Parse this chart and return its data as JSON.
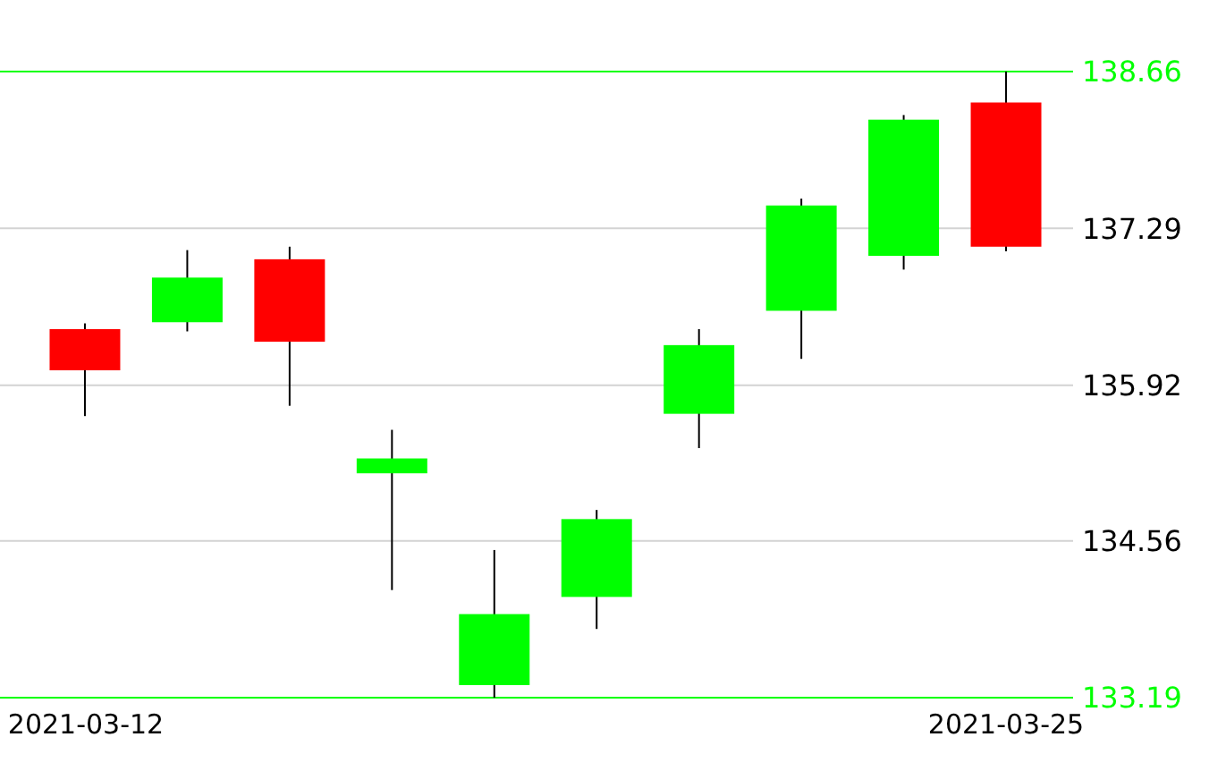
{
  "chart_data": {
    "type": "candlestick",
    "categories": [
      "2021-03-12",
      null,
      null,
      null,
      null,
      null,
      null,
      null,
      null,
      "2021-03-25"
    ],
    "ohlc": [
      [
        136.41,
        136.46,
        135.65,
        136.05
      ],
      [
        136.47,
        137.1,
        136.39,
        136.86
      ],
      [
        137.02,
        137.13,
        135.74,
        136.3
      ],
      [
        135.15,
        135.53,
        134.13,
        135.28
      ],
      [
        133.3,
        134.48,
        133.19,
        133.92
      ],
      [
        134.07,
        134.83,
        133.79,
        134.75
      ],
      [
        135.67,
        136.41,
        135.37,
        136.27
      ],
      [
        136.57,
        137.55,
        136.15,
        137.49
      ],
      [
        137.05,
        138.28,
        136.93,
        138.24
      ],
      [
        138.39,
        138.66,
        137.09,
        137.13
      ]
    ],
    "colors": [
      "#ff0000",
      "#00ff00",
      "#ff0000",
      "#00ff00",
      "#00ff00",
      "#00ff00",
      "#00ff00",
      "#00ff00",
      "#00ff00",
      "#ff0000"
    ],
    "ylim": [
      133.19,
      138.66
    ],
    "yticks": [
      133.19,
      134.56,
      135.92,
      137.29,
      138.66
    ],
    "grid": "y"
  }
}
